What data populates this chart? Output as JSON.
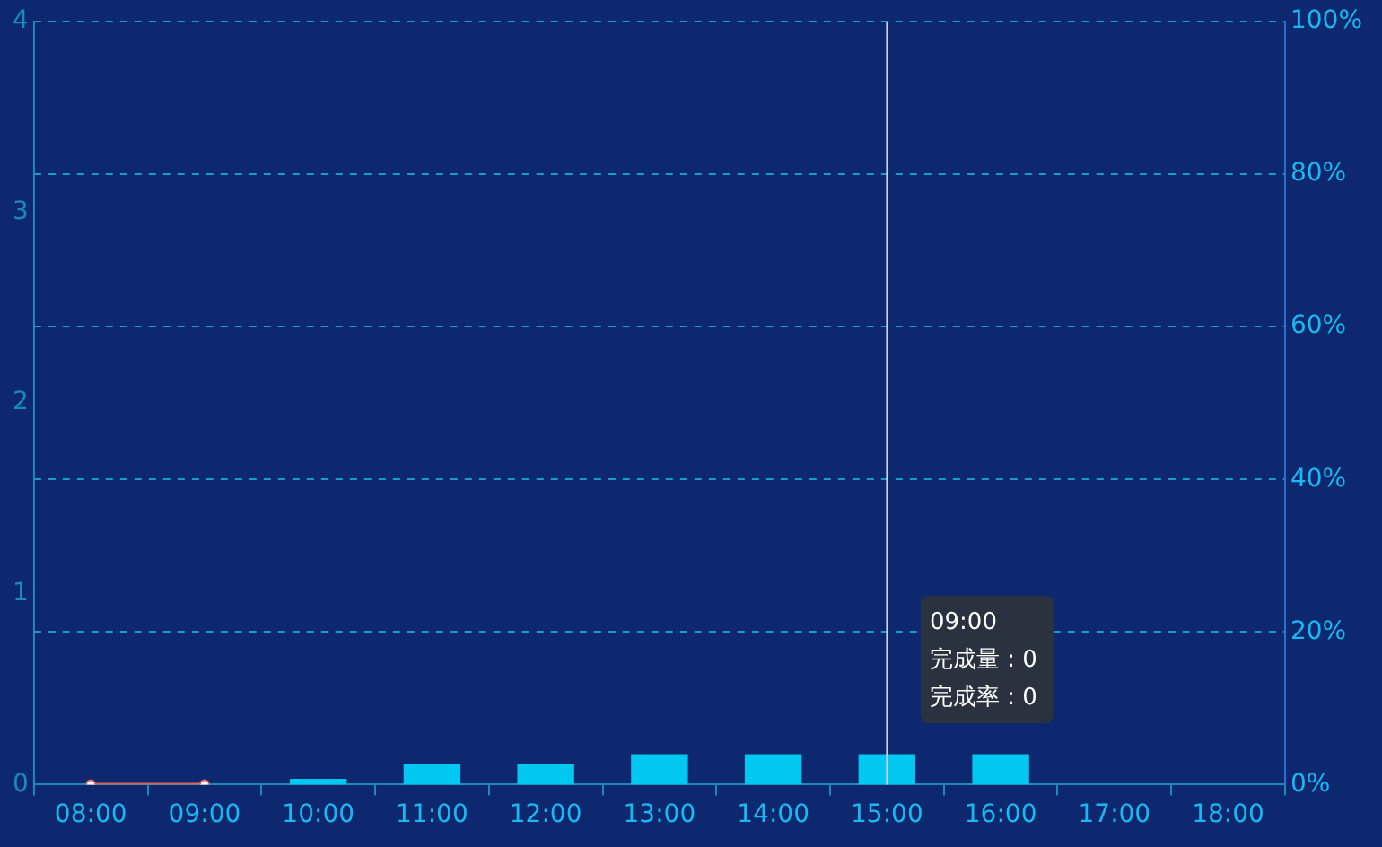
{
  "chart_data": {
    "type": "bar",
    "categories": [
      "08:00",
      "09:00",
      "10:00",
      "11:00",
      "12:00",
      "13:00",
      "14:00",
      "15:00",
      "16:00",
      "17:00",
      "18:00"
    ],
    "series": [
      {
        "color": "#00c8f0",
        "values": [
          0,
          0,
          0.03,
          0.11,
          0.11,
          0.16,
          0.16,
          0.16,
          0.16,
          0,
          0
        ]
      },
      {
        "type": "line",
        "axis": "y2",
        "color": "#d9675e",
        "marker": "circle",
        "values": [
          0,
          0,
          null,
          null,
          null,
          null,
          null,
          null,
          null,
          null,
          null
        ]
      }
    ],
    "ylim": [
      0,
      4
    ],
    "yticks": [
      0,
      1,
      2,
      3,
      4
    ],
    "y2lim": [
      0,
      100
    ],
    "y2ticks": [
      {
        "value": 0,
        "label": "0%"
      },
      {
        "value": 20,
        "label": "20%"
      },
      {
        "value": 40,
        "label": "40%"
      },
      {
        "value": 60,
        "label": "60%"
      },
      {
        "value": 80,
        "label": "80%"
      },
      {
        "value": 100,
        "label": "100%"
      }
    ],
    "grid": "y",
    "ref_lines": [
      {
        "axis": "x",
        "value": "15:00",
        "color": "#c8d2f0"
      }
    ],
    "annotations": [
      "09:00",
      "完成量 : 0",
      "完成率 : 0"
    ]
  }
}
